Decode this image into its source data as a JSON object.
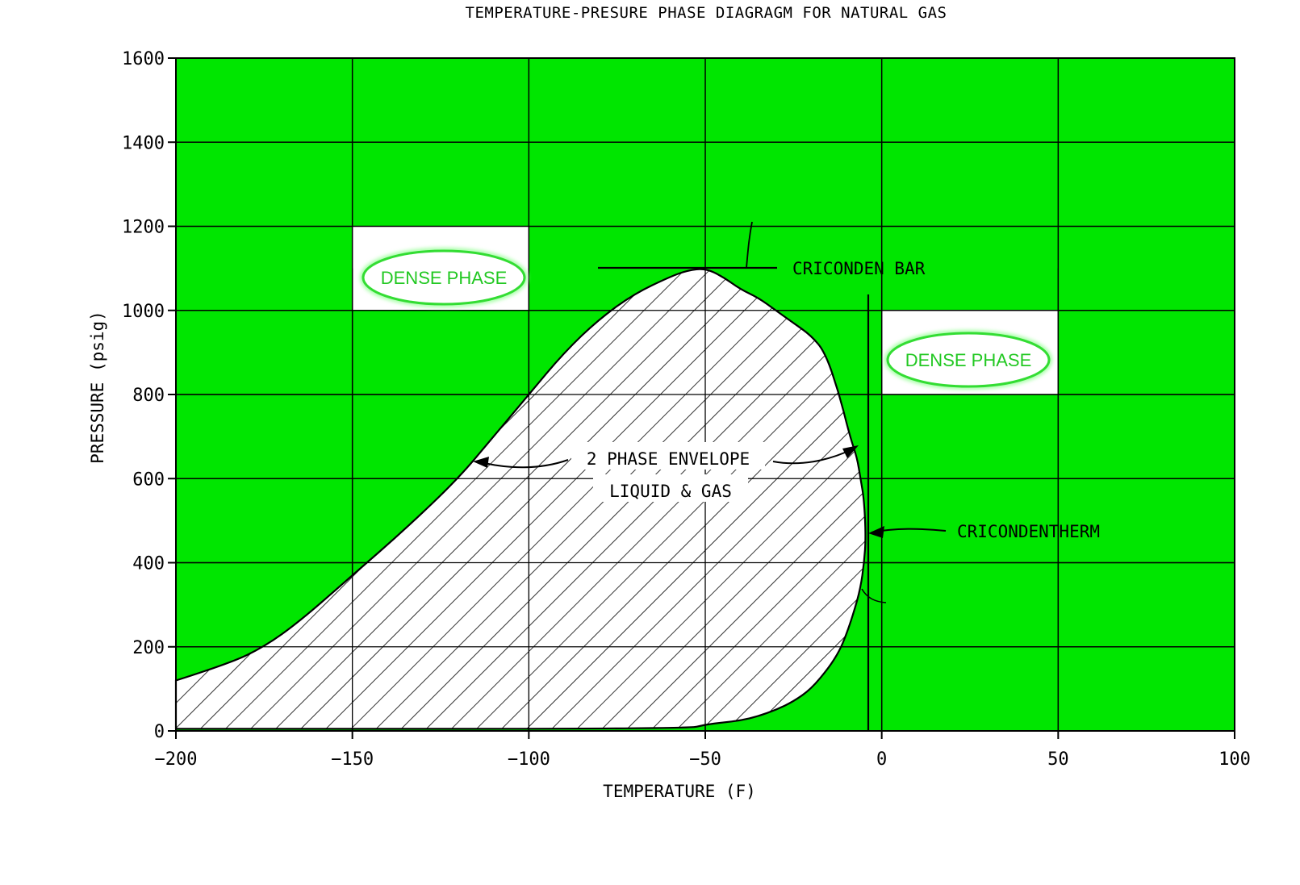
{
  "colors": {
    "plot_fill": "#00e600",
    "grid": "#000000",
    "dense_phase_text": "#22c822",
    "dense_phase_ellipse": "#33dd33",
    "envelope_fill": "#ffffff"
  },
  "chart_data": {
    "type": "area",
    "title": "TEMPERATURE-PRESURE PHASE DIAGRAGM FOR NATURAL GAS",
    "xlabel": "TEMPERATURE  (F)",
    "ylabel": "PRESSURE  (psig)",
    "xlim": [
      -200,
      100
    ],
    "ylim": [
      0,
      1600
    ],
    "grid": true,
    "x_ticks": [
      -200,
      -150,
      -100,
      -50,
      0,
      50,
      100
    ],
    "y_ticks": [
      0,
      200,
      400,
      600,
      800,
      1000,
      1200,
      1400,
      1600
    ],
    "series": [
      {
        "name": "2 PHASE ENVELOPE",
        "fill": "hatched",
        "x": [
          -200,
          -185,
          -175,
          -165,
          -150,
          -135,
          -120,
          -110,
          -100,
          -90,
          -80,
          -70,
          -60,
          -55,
          -50,
          -45,
          -40,
          -35,
          -30,
          -25,
          -20,
          -16,
          -12,
          -9,
          -7,
          -6,
          -5,
          -4.5,
          -5,
          -6,
          -8,
          -10,
          -12,
          -15,
          -20,
          -25,
          -30,
          -35,
          -40,
          -45,
          -50,
          -55,
          -200
        ],
        "y": [
          120,
          160,
          200,
          260,
          370,
          480,
          600,
          700,
          800,
          900,
          980,
          1040,
          1080,
          1095,
          1100,
          1080,
          1050,
          1030,
          1000,
          970,
          940,
          900,
          800,
          700,
          650,
          600,
          550,
          460,
          400,
          340,
          280,
          230,
          190,
          150,
          100,
          70,
          50,
          35,
          25,
          20,
          15,
          5,
          5
        ]
      }
    ],
    "annotations": {
      "dense_phase": "DENSE PHASE",
      "envelope_line1": "2 PHASE ENVELOPE",
      "envelope_line2": "LIQUID & GAS",
      "cricondenbar": "CRICONDEN BAR",
      "cricondentherm": "CRICONDENTHERM"
    },
    "cricondenbar": {
      "x": -50,
      "y": 1100
    },
    "cricondentherm": {
      "x": -4.5,
      "y": 460
    },
    "dense_phase_boxes": [
      {
        "x0": -150,
        "x1": -100,
        "y0": 1000,
        "y1": 1200
      },
      {
        "x0": 0,
        "x1": 50,
        "y0": 800,
        "y1": 1000
      }
    ]
  }
}
